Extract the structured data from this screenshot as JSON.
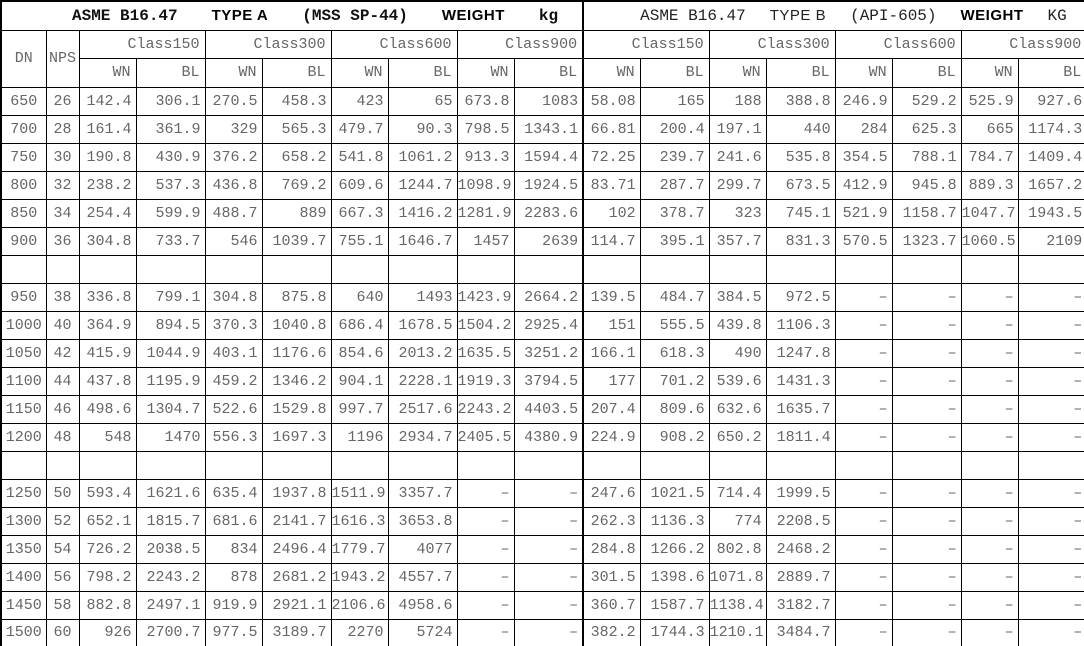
{
  "table": {
    "title_a": {
      "code": "ASME B16.47",
      "type": "TYPE A",
      "spec": "(MSS SP-44)",
      "weight_label": "WEIGHT",
      "unit": "kg"
    },
    "title_b": {
      "code": "ASME B16.47",
      "type": "TYPE B",
      "spec": "(API-605)",
      "weight_label": "WEIGHT",
      "unit": "KG"
    },
    "col_headers": {
      "dn": "DN",
      "nps": "NPS",
      "class_groups": [
        "Class150",
        "Class300",
        "Class600",
        "Class900",
        "Class150",
        "Class300",
        "Class600",
        "Class900"
      ],
      "sub_headers": [
        "WN",
        "BL"
      ]
    },
    "rows": [
      {
        "dn": "650",
        "nps": "26",
        "values": [
          "142.4",
          "306.1",
          "270.5",
          "458.3",
          "423",
          "65",
          "673.8",
          "1083",
          "58.08",
          "165",
          "188",
          "388.8",
          "246.9",
          "529.2",
          "525.9",
          "927.6"
        ]
      },
      {
        "dn": "700",
        "nps": "28",
        "values": [
          "161.4",
          "361.9",
          "329",
          "565.3",
          "479.7",
          "90.3",
          "798.5",
          "1343.1",
          "66.81",
          "200.4",
          "197.1",
          "440",
          "284",
          "625.3",
          "665",
          "1174.3"
        ]
      },
      {
        "dn": "750",
        "nps": "30",
        "values": [
          "190.8",
          "430.9",
          "376.2",
          "658.2",
          "541.8",
          "1061.2",
          "913.3",
          "1594.4",
          "72.25",
          "239.7",
          "241.6",
          "535.8",
          "354.5",
          "788.1",
          "784.7",
          "1409.4"
        ]
      },
      {
        "dn": "800",
        "nps": "32",
        "values": [
          "238.2",
          "537.3",
          "436.8",
          "769.2",
          "609.6",
          "1244.7",
          "1098.9",
          "1924.5",
          "83.71",
          "287.7",
          "299.7",
          "673.5",
          "412.9",
          "945.8",
          "889.3",
          "1657.2"
        ]
      },
      {
        "dn": "850",
        "nps": "34",
        "values": [
          "254.4",
          "599.9",
          "488.7",
          "889",
          "667.3",
          "1416.2",
          "1281.9",
          "2283.6",
          "102",
          "378.7",
          "323",
          "745.1",
          "521.9",
          "1158.7",
          "1047.7",
          "1943.5"
        ]
      },
      {
        "dn": "900",
        "nps": "36",
        "values": [
          "304.8",
          "733.7",
          "546",
          "1039.7",
          "755.1",
          "1646.7",
          "1457",
          "2639",
          "114.7",
          "395.1",
          "357.7",
          "831.3",
          "570.5",
          "1323.7",
          "1060.5",
          "2109"
        ]
      },
      {
        "separator": true
      },
      {
        "dn": "950",
        "nps": "38",
        "values": [
          "336.8",
          "799.1",
          "304.8",
          "875.8",
          "640",
          "1493",
          "1423.9",
          "2664.2",
          "139.5",
          "484.7",
          "384.5",
          "972.5",
          "–",
          "–",
          "–",
          "–"
        ]
      },
      {
        "dn": "1000",
        "nps": "40",
        "values": [
          "364.9",
          "894.5",
          "370.3",
          "1040.8",
          "686.4",
          "1678.5",
          "1504.2",
          "2925.4",
          "151",
          "555.5",
          "439.8",
          "1106.3",
          "–",
          "–",
          "–",
          "–"
        ]
      },
      {
        "dn": "1050",
        "nps": "42",
        "values": [
          "415.9",
          "1044.9",
          "403.1",
          "1176.6",
          "854.6",
          "2013.2",
          "1635.5",
          "3251.2",
          "166.1",
          "618.3",
          "490",
          "1247.8",
          "–",
          "–",
          "–",
          "–"
        ]
      },
      {
        "dn": "1100",
        "nps": "44",
        "values": [
          "437.8",
          "1195.9",
          "459.2",
          "1346.2",
          "904.1",
          "2228.1",
          "1919.3",
          "3794.5",
          "177",
          "701.2",
          "539.6",
          "1431.3",
          "–",
          "–",
          "–",
          "–"
        ]
      },
      {
        "dn": "1150",
        "nps": "46",
        "values": [
          "498.6",
          "1304.7",
          "522.6",
          "1529.8",
          "997.7",
          "2517.6",
          "2243.2",
          "4403.5",
          "207.4",
          "809.6",
          "632.6",
          "1635.7",
          "–",
          "–",
          "–",
          "–"
        ]
      },
      {
        "dn": "1200",
        "nps": "48",
        "values": [
          "548",
          "1470",
          "556.3",
          "1697.3",
          "1196",
          "2934.7",
          "2405.5",
          "4380.9",
          "224.9",
          "908.2",
          "650.2",
          "1811.4",
          "–",
          "–",
          "–",
          "–"
        ]
      },
      {
        "separator": true
      },
      {
        "dn": "1250",
        "nps": "50",
        "values": [
          "593.4",
          "1621.6",
          "635.4",
          "1937.8",
          "1511.9",
          "3357.7",
          "–",
          "–",
          "247.6",
          "1021.5",
          "714.4",
          "1999.5",
          "–",
          "–",
          "–",
          "–"
        ]
      },
      {
        "dn": "1300",
        "nps": "52",
        "values": [
          "652.1",
          "1815.7",
          "681.6",
          "2141.7",
          "1616.3",
          "3653.8",
          "–",
          "–",
          "262.3",
          "1136.3",
          "774",
          "2208.5",
          "–",
          "–",
          "–",
          "–"
        ]
      },
      {
        "dn": "1350",
        "nps": "54",
        "values": [
          "726.2",
          "2038.5",
          "834",
          "2496.4",
          "1779.7",
          "4077",
          "–",
          "–",
          "284.8",
          "1266.2",
          "802.8",
          "2468.2",
          "–",
          "–",
          "–",
          "–"
        ]
      },
      {
        "dn": "1400",
        "nps": "56",
        "values": [
          "798.2",
          "2243.2",
          "878",
          "2681.2",
          "1943.2",
          "4557.7",
          "–",
          "–",
          "301.5",
          "1398.6",
          "1071.8",
          "2889.7",
          "–",
          "–",
          "–",
          "–"
        ]
      },
      {
        "dn": "1450",
        "nps": "58",
        "values": [
          "882.8",
          "2497.1",
          "919.9",
          "2921.1",
          "2106.6",
          "4958.6",
          "–",
          "–",
          "360.7",
          "1587.7",
          "1138.4",
          "3182.7",
          "–",
          "–",
          "–",
          "–"
        ]
      },
      {
        "dn": "1500",
        "nps": "60",
        "values": [
          "926",
          "2700.7",
          "977.5",
          "3189.7",
          "2270",
          "5724",
          "–",
          "–",
          "382.2",
          "1744.3",
          "1210.1",
          "3484.7",
          "–",
          "–",
          "–",
          "–"
        ]
      }
    ]
  },
  "colors": {
    "data_text": "#666666",
    "title_text": "#000000",
    "border": "#000000",
    "background": "#ffffff"
  }
}
